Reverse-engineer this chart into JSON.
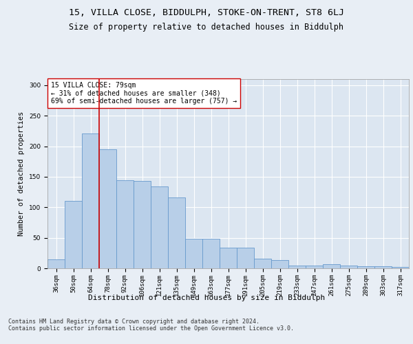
{
  "title1": "15, VILLA CLOSE, BIDDULPH, STOKE-ON-TRENT, ST8 6LJ",
  "title2": "Size of property relative to detached houses in Biddulph",
  "xlabel": "Distribution of detached houses by size in Biddulph",
  "ylabel": "Number of detached properties",
  "categories": [
    "36sqm",
    "50sqm",
    "64sqm",
    "78sqm",
    "92sqm",
    "106sqm",
    "121sqm",
    "135sqm",
    "149sqm",
    "163sqm",
    "177sqm",
    "191sqm",
    "205sqm",
    "219sqm",
    "233sqm",
    "247sqm",
    "261sqm",
    "275sqm",
    "289sqm",
    "303sqm",
    "317sqm"
  ],
  "values": [
    15,
    110,
    221,
    195,
    144,
    143,
    134,
    116,
    48,
    48,
    34,
    34,
    16,
    14,
    4,
    4,
    7,
    4,
    3,
    3,
    2
  ],
  "bar_color": "#b8cfe8",
  "bar_edge_color": "#6699cc",
  "vline_color": "#cc0000",
  "annotation_text": "15 VILLA CLOSE: 79sqm\n← 31% of detached houses are smaller (348)\n69% of semi-detached houses are larger (757) →",
  "annotation_box_color": "#ffffff",
  "annotation_box_edge": "#cc0000",
  "background_color": "#e8eef5",
  "plot_bg_color": "#dce6f1",
  "grid_color": "#ffffff",
  "footer_text": "Contains HM Land Registry data © Crown copyright and database right 2024.\nContains public sector information licensed under the Open Government Licence v3.0.",
  "ylim": [
    0,
    310
  ],
  "title1_fontsize": 9.5,
  "title2_fontsize": 8.5,
  "xlabel_fontsize": 8,
  "ylabel_fontsize": 7.5,
  "tick_fontsize": 6.5,
  "annotation_fontsize": 7,
  "footer_fontsize": 6
}
